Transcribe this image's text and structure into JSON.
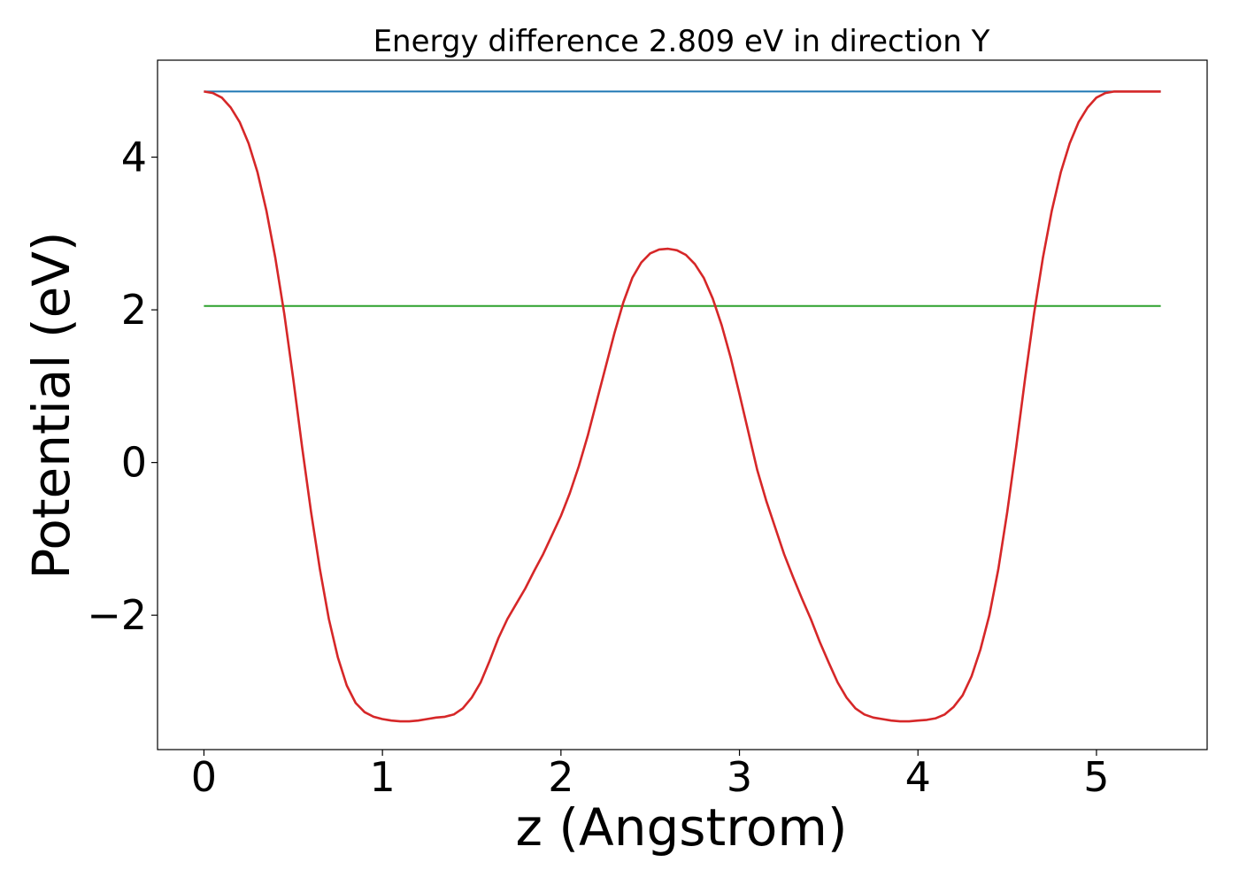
{
  "chart_data": {
    "type": "line",
    "title": "Energy difference 2.809 eV in direction Y",
    "xlabel": "z (Angstrom)",
    "ylabel": "Potential (eV)",
    "xlim": [
      -0.26,
      5.62
    ],
    "ylim": [
      -3.76,
      5.27
    ],
    "xticks": [
      0,
      1,
      2,
      3,
      4,
      5
    ],
    "xtick_labels": [
      "0",
      "1",
      "2",
      "3",
      "4",
      "5"
    ],
    "yticks": [
      -2,
      0,
      2,
      4
    ],
    "ytick_labels": [
      "−2",
      "0",
      "2",
      "4"
    ],
    "grid": false,
    "legend": "none",
    "series": [
      {
        "color": "#1f77b4",
        "x": [
          0,
          5.36
        ],
        "y": [
          4.86,
          4.86
        ]
      },
      {
        "color": "#2ca02c",
        "x": [
          0,
          5.36
        ],
        "y": [
          2.05,
          2.05
        ]
      },
      {
        "color": "#d62728",
        "x": [
          0,
          0.05,
          0.1,
          0.15,
          0.2,
          0.25,
          0.3,
          0.35,
          0.4,
          0.45,
          0.5,
          0.55,
          0.6,
          0.65,
          0.7,
          0.75,
          0.8,
          0.85,
          0.9,
          0.95,
          1.0,
          1.05,
          1.1,
          1.15,
          1.2,
          1.25,
          1.3,
          1.35,
          1.4,
          1.45,
          1.5,
          1.55,
          1.6,
          1.65,
          1.7,
          1.75,
          1.8,
          1.85,
          1.9,
          1.95,
          2.0,
          2.05,
          2.1,
          2.15,
          2.2,
          2.25,
          2.3,
          2.35,
          2.4,
          2.45,
          2.5,
          2.55,
          2.6,
          2.65,
          2.7,
          2.75,
          2.8,
          2.85,
          2.9,
          2.95,
          3.0,
          3.05,
          3.1,
          3.15,
          3.2,
          3.25,
          3.3,
          3.35,
          3.4,
          3.45,
          3.5,
          3.55,
          3.6,
          3.65,
          3.7,
          3.75,
          3.8,
          3.85,
          3.9,
          3.95,
          4.0,
          4.05,
          4.1,
          4.15,
          4.2,
          4.25,
          4.3,
          4.35,
          4.4,
          4.45,
          4.5,
          4.55,
          4.6,
          4.65,
          4.7,
          4.75,
          4.8,
          4.85,
          4.9,
          4.95,
          5.0,
          5.05,
          5.1,
          5.15,
          5.2,
          5.25,
          5.3,
          5.36
        ],
        "y": [
          4.86,
          4.84,
          4.78,
          4.65,
          4.46,
          4.18,
          3.8,
          3.3,
          2.68,
          1.95,
          1.1,
          0.2,
          -0.65,
          -1.4,
          -2.05,
          -2.55,
          -2.92,
          -3.15,
          -3.27,
          -3.33,
          -3.36,
          -3.38,
          -3.39,
          -3.39,
          -3.38,
          -3.36,
          -3.34,
          -3.33,
          -3.3,
          -3.22,
          -3.08,
          -2.88,
          -2.6,
          -2.3,
          -2.05,
          -1.85,
          -1.65,
          -1.42,
          -1.2,
          -0.95,
          -0.7,
          -0.4,
          -0.05,
          0.35,
          0.8,
          1.25,
          1.7,
          2.1,
          2.42,
          2.62,
          2.74,
          2.79,
          2.8,
          2.78,
          2.72,
          2.6,
          2.42,
          2.15,
          1.8,
          1.38,
          0.9,
          0.4,
          -0.1,
          -0.5,
          -0.85,
          -1.2,
          -1.5,
          -1.78,
          -2.05,
          -2.35,
          -2.62,
          -2.88,
          -3.08,
          -3.22,
          -3.3,
          -3.34,
          -3.36,
          -3.38,
          -3.39,
          -3.39,
          -3.38,
          -3.37,
          -3.35,
          -3.3,
          -3.2,
          -3.05,
          -2.8,
          -2.45,
          -2.0,
          -1.4,
          -0.65,
          0.2,
          1.1,
          1.95,
          2.68,
          3.3,
          3.8,
          4.18,
          4.46,
          4.65,
          4.78,
          4.84,
          4.86,
          4.86,
          4.86,
          4.86,
          4.86,
          4.86
        ]
      }
    ]
  }
}
